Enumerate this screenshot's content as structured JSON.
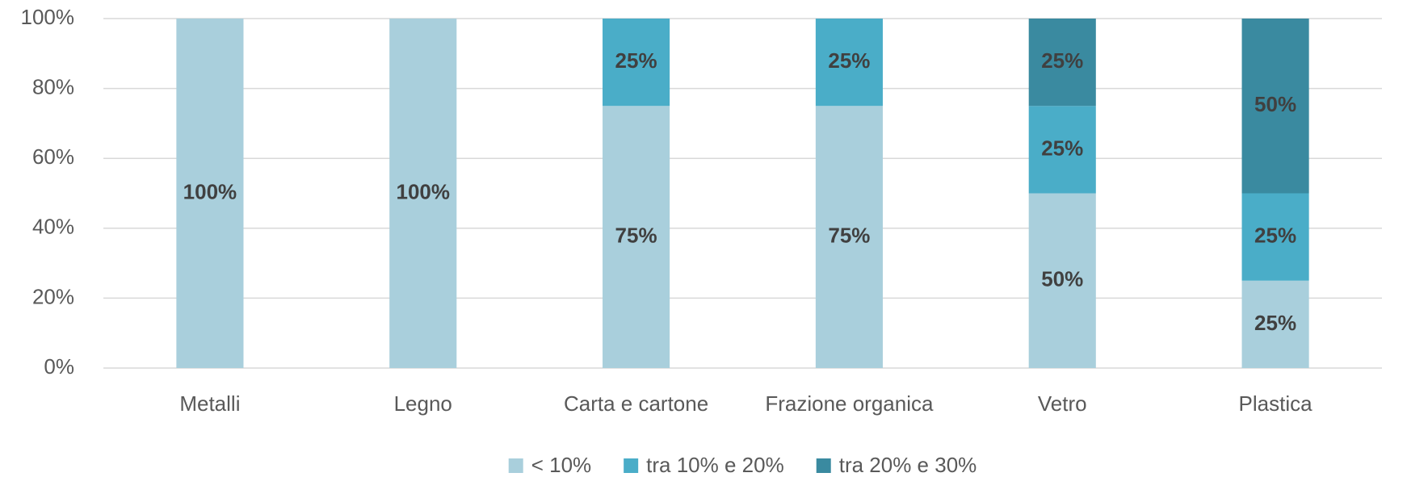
{
  "chart_data": {
    "type": "stacked_bar",
    "categories": [
      "Metalli",
      "Legno",
      "Carta e cartone",
      "Frazione organica",
      "Vetro",
      "Plastica"
    ],
    "series": [
      {
        "name": "< 10%",
        "color": "#a9cfdc",
        "values": [
          100,
          100,
          75,
          75,
          50,
          25
        ],
        "value_labels": [
          "100%",
          "100%",
          "75%",
          "75%",
          "50%",
          "25%"
        ]
      },
      {
        "name": "tra 10% e 20%",
        "color": "#4aadc8",
        "values": [
          null,
          null,
          25,
          25,
          25,
          25
        ],
        "value_labels": [
          null,
          null,
          "25%",
          "25%",
          "25%",
          "25%"
        ]
      },
      {
        "name": "tra 20% e 30%",
        "color": "#3a8aa0",
        "values": [
          null,
          null,
          null,
          null,
          25,
          50
        ],
        "value_labels": [
          null,
          null,
          null,
          null,
          "25%",
          "50%"
        ]
      }
    ],
    "ylim": [
      0,
      100
    ],
    "yticks": [
      {
        "value": 0,
        "label": "0%"
      },
      {
        "value": 20,
        "label": "20%"
      },
      {
        "value": 40,
        "label": "40%"
      },
      {
        "value": 60,
        "label": "60%"
      },
      {
        "value": 80,
        "label": "80%"
      },
      {
        "value": 100,
        "label": "100%"
      }
    ],
    "grid": true,
    "legend": "bottom"
  }
}
